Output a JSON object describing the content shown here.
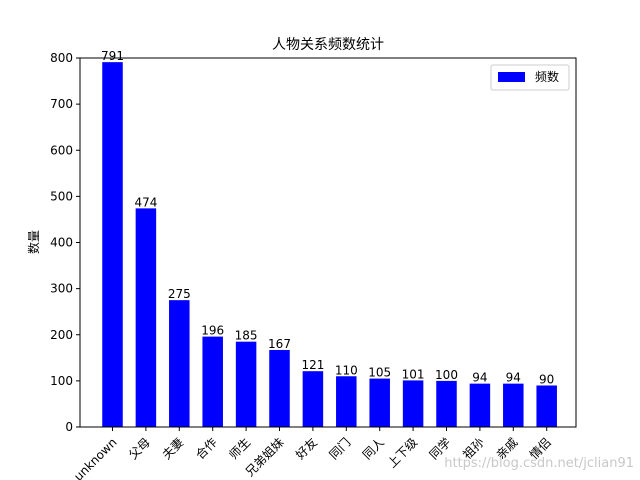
{
  "chart_data": {
    "type": "bar",
    "title": "人物关系频数统计",
    "xlabel": "",
    "ylabel": "数量",
    "categories": [
      "unknown",
      "父母",
      "夫妻",
      "合作",
      "师生",
      "兄弟姐妹",
      "好友",
      "同门",
      "同人",
      "上下级",
      "同学",
      "祖孙",
      "亲戚",
      "情侣"
    ],
    "series": [
      {
        "name": "频数",
        "values": [
          791,
          474,
          275,
          196,
          185,
          167,
          121,
          110,
          105,
          101,
          100,
          94,
          94,
          90
        ],
        "color": "#0000ff"
      }
    ],
    "ylim": [
      0,
      800
    ],
    "yticks": [
      0,
      100,
      200,
      300,
      400,
      500,
      600,
      700,
      800
    ],
    "grid": false,
    "legend_position": "top-right",
    "data_labels": true,
    "xtick_rotation": 45
  },
  "watermark": "https://blog.csdn.net/jclian91"
}
